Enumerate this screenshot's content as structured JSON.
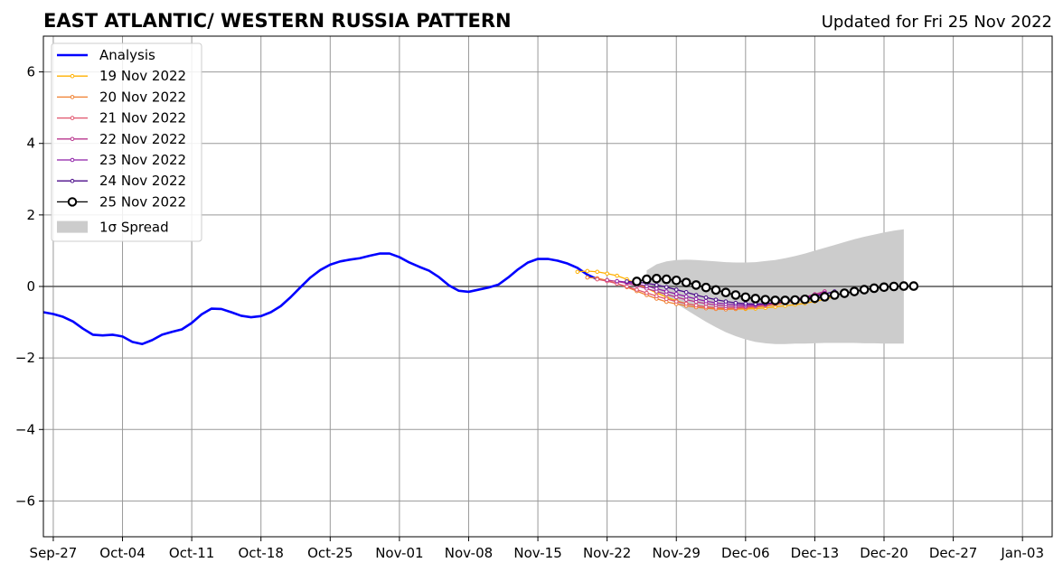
{
  "chart_data": {
    "type": "line",
    "title": "EAST ATLANTIC/ WESTERN RUSSIA PATTERN",
    "subtitle": "Updated for Fri 25 Nov 2022",
    "xlabel": "",
    "ylabel": "",
    "ylim": [
      -7,
      7
    ],
    "yticks": [
      -6,
      -4,
      -2,
      0,
      2,
      4,
      6
    ],
    "ytick_labels": [
      "−6",
      "−4",
      "−2",
      "0",
      "2",
      "4",
      "6"
    ],
    "xlim": [
      "2022-09-26",
      "2023-01-06"
    ],
    "xticks": [
      "2022-09-27",
      "2022-10-04",
      "2022-10-11",
      "2022-10-18",
      "2022-10-25",
      "2022-11-01",
      "2022-11-08",
      "2022-11-15",
      "2022-11-22",
      "2022-11-29",
      "2022-12-06",
      "2022-12-13",
      "2022-12-20",
      "2022-12-27",
      "2023-01-03"
    ],
    "xtick_labels": [
      "Sep-27",
      "Oct-04",
      "Oct-11",
      "Oct-18",
      "Oct-25",
      "Nov-01",
      "Nov-08",
      "Nov-15",
      "Nov-22",
      "Nov-29",
      "Dec-06",
      "Dec-13",
      "Dec-20",
      "Dec-27",
      "Jan-03"
    ],
    "grid": true,
    "legend_position": "top-left",
    "analysis": {
      "name": "Analysis",
      "color": "#0000ff",
      "start": "2022-09-26",
      "values": [
        -0.72,
        -0.77,
        -0.85,
        -0.98,
        -1.18,
        -1.35,
        -1.37,
        -1.35,
        -1.4,
        -1.55,
        -1.61,
        -1.5,
        -1.35,
        -1.27,
        -1.2,
        -1.02,
        -0.78,
        -0.62,
        -0.63,
        -0.72,
        -0.82,
        -0.86,
        -0.83,
        -0.72,
        -0.55,
        -0.3,
        -0.02,
        0.25,
        0.46,
        0.61,
        0.7,
        0.75,
        0.79,
        0.86,
        0.92,
        0.92,
        0.82,
        0.67,
        0.55,
        0.44,
        0.26,
        0.03,
        -0.12,
        -0.15,
        -0.09,
        -0.03,
        0.05,
        0.25,
        0.48,
        0.67,
        0.77,
        0.77,
        0.72,
        0.64,
        0.52,
        0.33,
        0.2
      ]
    },
    "forecasts": [
      {
        "name": "19 Nov 2022",
        "color": "#ffb000",
        "start": "2022-11-19",
        "values": [
          0.41,
          0.43,
          0.41,
          0.36,
          0.3,
          0.2,
          0.08,
          -0.05,
          -0.18,
          -0.3,
          -0.4,
          -0.48,
          -0.53,
          -0.57,
          -0.6,
          -0.62,
          -0.63,
          -0.63,
          -0.62,
          -0.6,
          -0.57,
          -0.54,
          -0.51,
          -0.47,
          -0.42,
          -0.36,
          -0.28
        ]
      },
      {
        "name": "20 Nov 2022",
        "color": "#f07f2e",
        "start": "2022-11-20",
        "values": [
          0.25,
          0.23,
          0.17,
          0.08,
          -0.02,
          -0.13,
          -0.24,
          -0.34,
          -0.43,
          -0.49,
          -0.54,
          -0.58,
          -0.61,
          -0.63,
          -0.64,
          -0.63,
          -0.61,
          -0.58,
          -0.55,
          -0.51,
          -0.46,
          -0.41,
          -0.35,
          -0.28,
          -0.2
        ]
      },
      {
        "name": "21 Nov 2022",
        "color": "#e0536c",
        "start": "2022-11-21",
        "values": [
          0.2,
          0.15,
          0.08,
          0.0,
          -0.09,
          -0.18,
          -0.27,
          -0.35,
          -0.42,
          -0.48,
          -0.53,
          -0.57,
          -0.59,
          -0.6,
          -0.6,
          -0.58,
          -0.55,
          -0.52,
          -0.48,
          -0.43,
          -0.37,
          -0.3,
          -0.22,
          -0.14
        ]
      },
      {
        "name": "22 Nov 2022",
        "color": "#b8368e",
        "start": "2022-11-22",
        "values": [
          0.18,
          0.14,
          0.09,
          0.02,
          -0.06,
          -0.14,
          -0.22,
          -0.3,
          -0.37,
          -0.43,
          -0.48,
          -0.52,
          -0.55,
          -0.56,
          -0.56,
          -0.54,
          -0.51,
          -0.47,
          -0.42,
          -0.36,
          -0.3,
          -0.22,
          -0.14
        ]
      },
      {
        "name": "23 Nov 2022",
        "color": "#8e1fa8",
        "start": "2022-11-23",
        "values": [
          0.15,
          0.12,
          0.07,
          0.01,
          -0.06,
          -0.14,
          -0.21,
          -0.28,
          -0.35,
          -0.41,
          -0.46,
          -0.49,
          -0.51,
          -0.52,
          -0.51,
          -0.49,
          -0.46,
          -0.42,
          -0.37,
          -0.31,
          -0.25,
          -0.18
        ]
      },
      {
        "name": "24 Nov 2022",
        "color": "#4b0c8a",
        "start": "2022-11-24",
        "values": [
          0.14,
          0.12,
          0.09,
          0.04,
          -0.02,
          -0.09,
          -0.16,
          -0.24,
          -0.31,
          -0.37,
          -0.42,
          -0.46,
          -0.48,
          -0.49,
          -0.48,
          -0.46,
          -0.43,
          -0.39,
          -0.34,
          -0.28,
          -0.21,
          -0.14
        ]
      },
      {
        "name": "25 Nov 2022",
        "color": "#000000",
        "start": "2022-11-25",
        "values": [
          0.14,
          0.2,
          0.22,
          0.2,
          0.17,
          0.11,
          0.04,
          -0.03,
          -0.1,
          -0.17,
          -0.24,
          -0.3,
          -0.34,
          -0.37,
          -0.39,
          -0.39,
          -0.38,
          -0.36,
          -0.33,
          -0.29,
          -0.24,
          -0.19,
          -0.14,
          -0.09,
          -0.05,
          -0.02,
          0.0,
          0.01,
          0.01
        ]
      }
    ],
    "spread": {
      "name": "1σ Spread",
      "color": "#cccccc",
      "start": "2022-11-26",
      "upper": [
        0.45,
        0.62,
        0.7,
        0.74,
        0.75,
        0.74,
        0.72,
        0.7,
        0.68,
        0.67,
        0.67,
        0.68,
        0.71,
        0.74,
        0.79,
        0.85,
        0.92,
        1.0,
        1.08,
        1.16,
        1.24,
        1.32,
        1.39,
        1.45,
        1.51,
        1.56,
        1.6
      ],
      "lower": [
        0.05,
        -0.15,
        -0.32,
        -0.48,
        -0.65,
        -0.82,
        -0.99,
        -1.14,
        -1.28,
        -1.39,
        -1.48,
        -1.55,
        -1.59,
        -1.61,
        -1.61,
        -1.6,
        -1.6,
        -1.59,
        -1.58,
        -1.58,
        -1.58,
        -1.58,
        -1.59,
        -1.59,
        -1.6,
        -1.6,
        -1.6
      ]
    }
  }
}
